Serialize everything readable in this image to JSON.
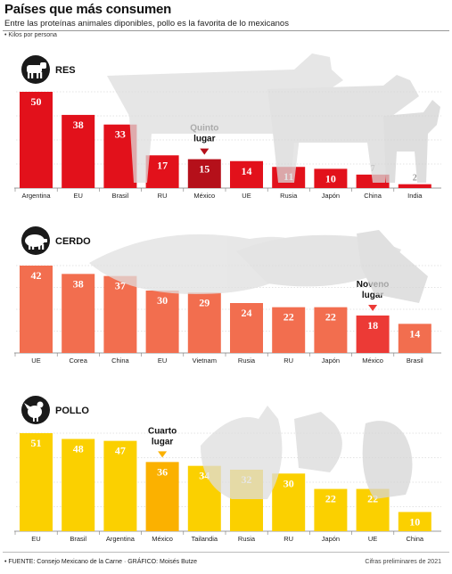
{
  "header": {
    "title": "Países que más consumen",
    "subtitle": "Entre las proteínas animales diponibles, pollo es la favorita de lo mexicanos",
    "unit_note": "Kilos por persona"
  },
  "footer": {
    "source": "• FUENTE: Consejo Mexicano de la Carne · GRÁFICO: Moisés Butze",
    "note": "Cifras preliminares de 2021"
  },
  "chart_data": [
    {
      "type": "bar",
      "section": "RES",
      "icon": "cow-icon",
      "color": "#e2111b",
      "highlight_color": "#b5101a",
      "highlight_index": 4,
      "annotation": "Quinto lugar",
      "categories": [
        "Argentina",
        "EU",
        "Brasil",
        "RU",
        "México",
        "UE",
        "Rusia",
        "Japón",
        "China",
        "India"
      ],
      "values": [
        50,
        38,
        33,
        17,
        15,
        14,
        11,
        10,
        7,
        2
      ],
      "ylim": [
        0,
        50
      ]
    },
    {
      "type": "bar",
      "section": "CERDO",
      "icon": "pig-icon",
      "color": "#f26e4f",
      "highlight_color": "#ec3a36",
      "highlight_index": 8,
      "annotation": "Noveno lugar",
      "categories": [
        "UE",
        "Corea",
        "China",
        "EU",
        "Vietnam",
        "Rusia",
        "RU",
        "Japón",
        "México",
        "Brasil"
      ],
      "values": [
        42,
        38,
        37,
        30,
        29,
        24,
        22,
        22,
        18,
        14
      ],
      "ylim": [
        0,
        42
      ]
    },
    {
      "type": "bar",
      "section": "POLLO",
      "icon": "chicken-icon",
      "color": "#fbd000",
      "highlight_color": "#fbb100",
      "highlight_index": 3,
      "annotation": "Cuarto lugar",
      "categories": [
        "EU",
        "Brasil",
        "Argentina",
        "México",
        "Tailandia",
        "Rusia",
        "RU",
        "Japón",
        "UE",
        "China"
      ],
      "values": [
        51,
        48,
        47,
        36,
        34,
        32,
        30,
        22,
        22,
        10
      ],
      "ylim": [
        0,
        51
      ]
    }
  ]
}
